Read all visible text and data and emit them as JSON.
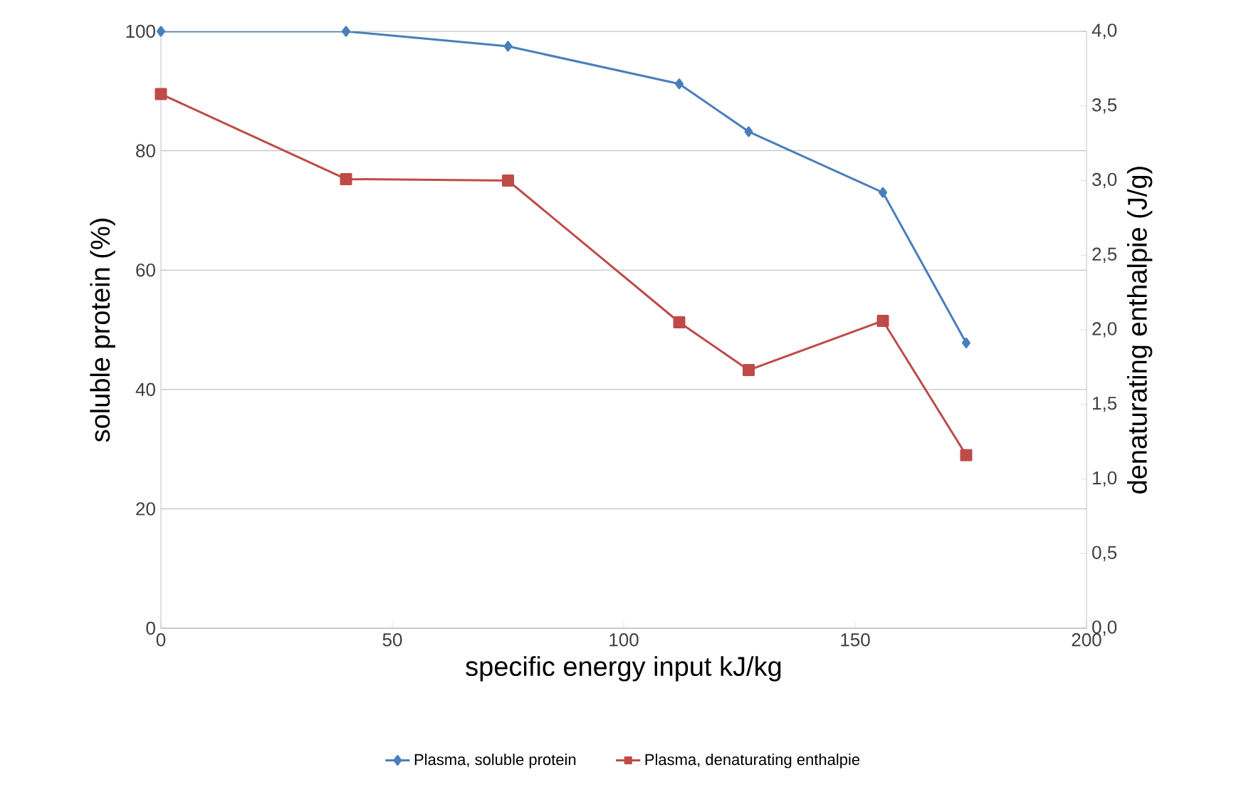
{
  "chart_data": {
    "type": "line",
    "xlabel": "specific energy input kJ/kg",
    "ylabel": "soluble protein (%)",
    "y2label": "denaturating enthalpie (J/g)",
    "x": [
      0,
      40,
      75,
      112,
      127,
      156,
      174
    ],
    "series": [
      {
        "name": "Plasma, soluble protein",
        "color": "#4a7ebb",
        "marker": "diamond",
        "values": [
          100,
          100,
          97.5,
          91.2,
          83.2,
          73.0,
          47.8
        ]
      },
      {
        "name": "Plasma, denaturating enthalpie",
        "color": "#be4b48",
        "marker": "square",
        "axis": "y2",
        "values": [
          3.58,
          3.01,
          3.0,
          2.05,
          1.73,
          2.06,
          1.16
        ]
      }
    ],
    "xlim": [
      0,
      200
    ],
    "xticks": [
      0,
      50,
      100,
      150,
      200
    ],
    "ylim": [
      0,
      100
    ],
    "yticks": [
      0,
      20,
      40,
      60,
      80,
      100
    ],
    "y2lim": [
      0,
      4
    ],
    "y2ticks": [
      {
        "value": 0,
        "label": "0,0"
      },
      {
        "value": 0.5,
        "label": "0,5"
      },
      {
        "value": 1,
        "label": "1,0"
      },
      {
        "value": 1.5,
        "label": "1,5"
      },
      {
        "value": 2,
        "label": "2,0"
      },
      {
        "value": 2.5,
        "label": "2,5"
      },
      {
        "value": 3,
        "label": "3,0"
      },
      {
        "value": 3.5,
        "label": "3,5"
      },
      {
        "value": 4,
        "label": "4,0"
      }
    ],
    "grid": "y",
    "legend": "bottom",
    "line_style": "solid"
  }
}
